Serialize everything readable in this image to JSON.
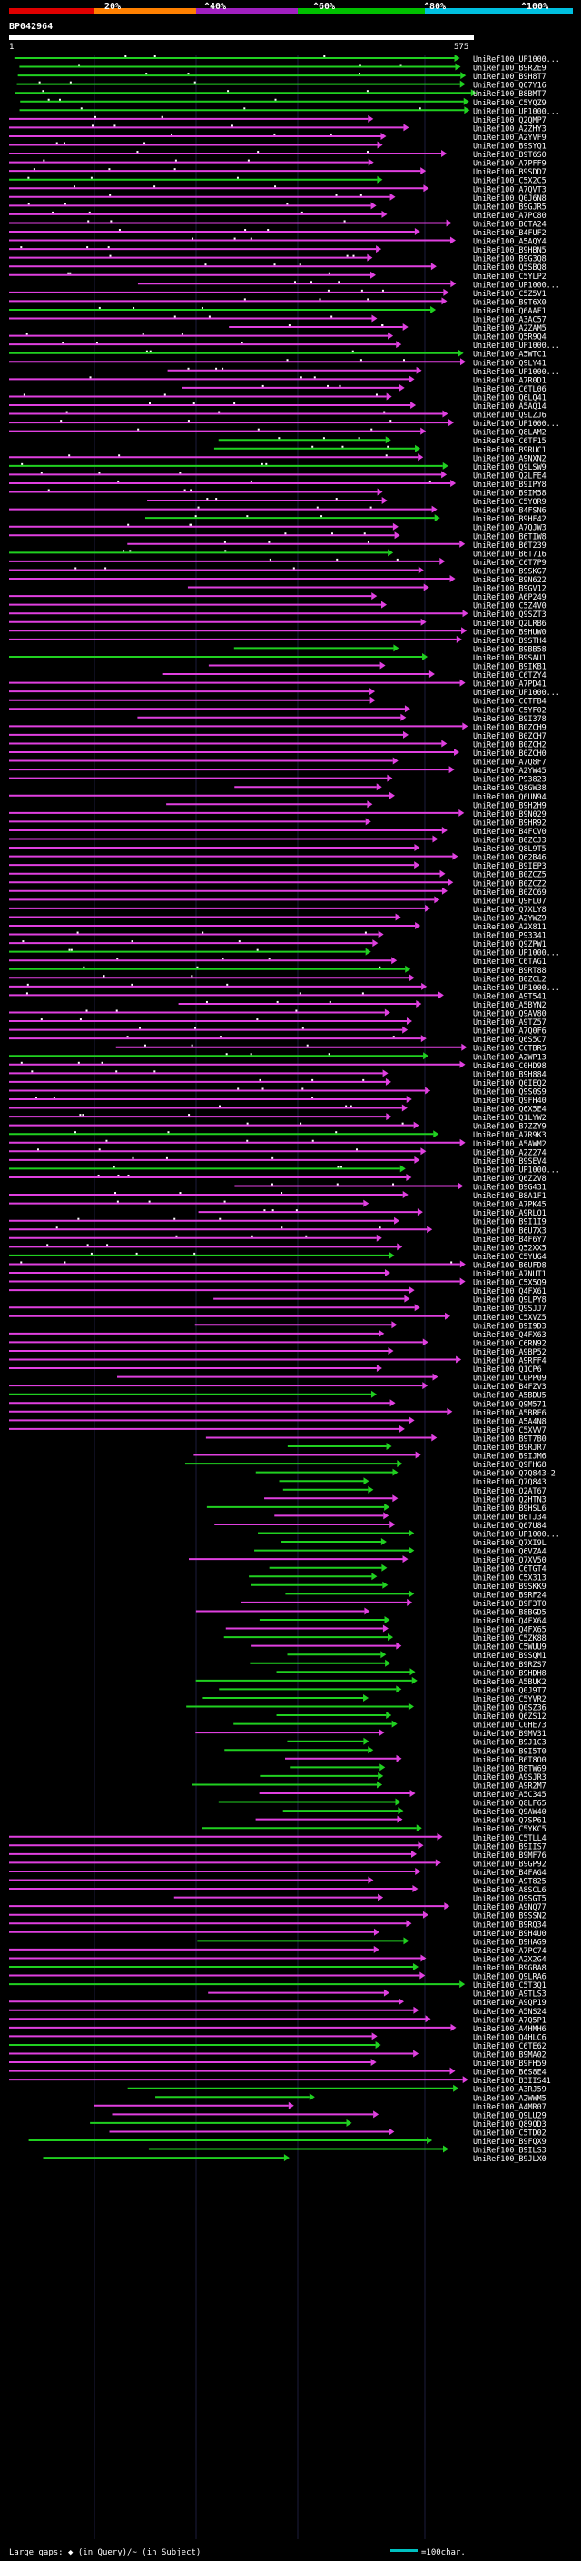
{
  "header": {
    "scale_labels": [
      "20%",
      "^40%",
      "^60%",
      "^80%",
      "^100%"
    ],
    "scale_colors": [
      "#e00000",
      "#ff8000",
      "#a020c0",
      "#00c000",
      "#00c0e0"
    ],
    "query_id": "BP042964",
    "ruler_start": "1",
    "ruler_end": "575"
  },
  "legend": {
    "large_gaps_label": "Large gaps: ◆ (in Query)/~ (in Subject)",
    "scale_label": "=100char."
  },
  "colors": {
    "magenta": "#e040e0",
    "green": "#20d020",
    "orange": "#e07000",
    "yellow": "#e0e040",
    "white": "#ffffff"
  },
  "hits": [
    "UniRef100_UP1000...",
    "UniRef100_B9R2E9",
    "UniRef100_B9H8T7",
    "UniRef100_Q67Y16",
    "UniRef100_B8BMT7",
    "UniRef100_C5YQZ9",
    "UniRef100_UP1000...",
    "UniRef100_Q2QMP7",
    "UniRef100_A2ZHY3",
    "UniRef100_A2YVF9",
    "UniRef100_B9SYQ1",
    "UniRef100_B9T6S0",
    "UniRef100_A7PFF9",
    "UniRef100_B9SDD7",
    "UniRef100_C5X2C5",
    "UniRef100_A7QVT3",
    "UniRef100_Q0J6N8",
    "UniRef100_B9GJR5",
    "UniRef100_A7PC80",
    "UniRef100_B6TA24",
    "UniRef100_B4FUF2",
    "UniRef100_A5AQY4",
    "UniRef100_B9HBN5",
    "UniRef100_B9G3Q8",
    "UniRef100_Q5SBQ8",
    "UniRef100_C5YLP2",
    "UniRef100_UP1000...",
    "UniRef100_C5Z5V1",
    "UniRef100_B9T6X0",
    "UniRef100_Q6AAF1",
    "UniRef100_A3AC57",
    "UniRef100_A2ZAM5",
    "UniRef100_Q5R9Q4",
    "UniRef100_UP1000...",
    "UniRef100_A5WTC1",
    "UniRef100_Q9LY41",
    "UniRef100_UP1000...",
    "UniRef100_A7R0D1",
    "UniRef100_C6TL06",
    "UniRef100_Q6LQ41",
    "UniRef100_A5AQ14",
    "UniRef100_Q9LZJ6",
    "UniRef100_UP1000...",
    "UniRef100_Q8LAM2",
    "UniRef100_C6TF15",
    "UniRef100_B9RUC1",
    "UniRef100_A9NXN2",
    "UniRef100_Q9LSW9",
    "UniRef100_Q2LFE4",
    "UniRef100_B9IPY8",
    "UniRef100_B9IM58",
    "UniRef100_C5YOR9",
    "UniRef100_B4FSN6",
    "UniRef100_B9HF42",
    "UniRef100_A7QJW3",
    "UniRef100_B6TIW8",
    "UniRef100_B6T239",
    "UniRef100_B6T716",
    "UniRef100_C6T7P9",
    "UniRef100_B9SKG7",
    "UniRef100_B9N622",
    "UniRef100_B9GV12",
    "UniRef100_A6P249",
    "UniRef100_C5Z4V0",
    "UniRef100_Q9SZT3",
    "UniRef100_Q2LRB6",
    "UniRef100_B9HUW0",
    "UniRef100_B9STH4",
    "UniRef100_B9BB58",
    "UniRef100_B9SAU1",
    "UniRef100_B9IKB1",
    "UniRef100_C6TZY4",
    "UniRef100_A7PD41",
    "UniRef100_UP1000...",
    "UniRef100_C6TFB4",
    "UniRef100_C5YF02",
    "UniRef100_B9I378",
    "UniRef100_B0ZCH9",
    "UniRef100_B0ZCH7",
    "UniRef100_B0ZCH2",
    "UniRef100_B0ZCH0",
    "UniRef100_A7Q8F7",
    "UniRef100_A2YW45",
    "UniRef100_P93823",
    "UniRef100_Q8GW38",
    "UniRef100_Q6UN94",
    "UniRef100_B9H2H9",
    "UniRef100_B9N029",
    "UniRef100_B9HR92",
    "UniRef100_B4FCV0",
    "UniRef100_B0ZCJ3",
    "UniRef100_Q8L9T5",
    "UniRef100_Q62B46",
    "UniRef100_B9IEP3",
    "UniRef100_B0ZCZ5",
    "UniRef100_B0ZCZ2",
    "UniRef100_B0ZC69",
    "UniRef100_Q9FL07",
    "UniRef100_Q7XLY8",
    "UniRef100_A2YWZ9",
    "UniRef100_A2X811",
    "UniRef100_P93341",
    "UniRef100_Q9ZPW1",
    "UniRef100_UP1000...",
    "UniRef100_C6TAG1",
    "UniRef100_B9RT88",
    "UniRef100_B0ZCL2",
    "UniRef100_UP1000...",
    "UniRef100_A9T541",
    "UniRef100_A5BYN2",
    "UniRef100_Q9AV80",
    "UniRef100_A9TZ57",
    "UniRef100_A7Q0F6",
    "UniRef100_Q6S5C7",
    "UniRef100_C6TBR5",
    "UniRef100_A2WP13",
    "UniRef100_C0HD98",
    "UniRef100_B9H884",
    "UniRef100_Q0IEQ2",
    "UniRef100_Q9S0S9",
    "UniRef100_Q9FH40",
    "UniRef100_Q6X5E4",
    "UniRef100_Q1LYW2",
    "UniRef100_B7ZZY9",
    "UniRef100_A7R9K3",
    "UniRef100_A5AWM2",
    "UniRef100_A2Z274",
    "UniRef100_B9SEV4",
    "UniRef100_UP1000...",
    "UniRef100_Q6Z2V8",
    "UniRef100_B9G431",
    "UniRef100_B8A1F1",
    "UniRef100_A7PK45",
    "UniRef100_A9RLQ1",
    "UniRef100_B9I1I9",
    "UniRef100_B6U7X3",
    "UniRef100_B4F6Y7",
    "UniRef100_Q52XX5",
    "UniRef100_C5YUG4",
    "UniRef100_B6UFD8",
    "UniRef100_A7NUT1",
    "UniRef100_C5X5Q9",
    "UniRef100_Q4FX61",
    "UniRef100_Q9LPY8",
    "UniRef100_Q9SJJ7",
    "UniRef100_C5XVZ5",
    "UniRef100_B9I9D3",
    "UniRef100_Q4FX63",
    "UniRef100_C6RN92",
    "UniRef100_A9BP52",
    "UniRef100_A9RFF4",
    "UniRef100_Q1CP6",
    "UniRef100_C0PP09",
    "UniRef100_B4FZV3",
    "UniRef100_A5BDU5",
    "UniRef100_Q9M571",
    "UniRef100_A5BRE6",
    "UniRef100_A5A4N8",
    "UniRef100_C5XVV7",
    "UniRef100_B9T7B0",
    "UniRef100_B9RJR7",
    "UniRef100_B9IJM6",
    "UniRef100_Q9FHG8",
    "UniRef100_Q7Q843-2",
    "UniRef100_Q7Q843",
    "UniRef100_Q2AT67",
    "UniRef100_Q2HTN3",
    "UniRef100_B9HSL6",
    "UniRef100_B6TJ34",
    "UniRef100_Q67U84",
    "UniRef100_UP1000...",
    "UniRef100_Q7XI9L",
    "UniRef100_Q6VZA4",
    "UniRef100_Q7XV50",
    "UniRef100_C6TGT4",
    "UniRef100_C5X313",
    "UniRef100_B9SKK9",
    "UniRef100_B9RF24",
    "UniRef100_B9F3T0",
    "UniRef100_B8BGD5",
    "UniRef100_Q4FX64",
    "UniRef100_Q4FX65",
    "UniRef100_C5ZK88",
    "UniRef100_C5WUU9",
    "UniRef100_B9SQM1",
    "UniRef100_B9RZS7",
    "UniRef100_B9HDH8",
    "UniRef100_A5BUK2",
    "UniRef100_Q0J9T7",
    "UniRef100_C5YVR2",
    "UniRef100_Q0SZ36",
    "UniRef100_Q6ZS12",
    "UniRef100_C0HE73",
    "UniRef100_B9MV31",
    "UniRef100_B9J1C3",
    "UniRef100_B9I5T0",
    "UniRef100_B6T8O0",
    "UniRef100_B8TW69",
    "UniRef100_A9SJR3",
    "UniRef100_A9R2M7",
    "UniRef100_A5C345",
    "UniRef100_Q8LF65",
    "UniRef100_Q9AW40",
    "UniRef100_Q7SP61",
    "UniRef100_C5YKC5",
    "UniRef100_C5TLL4",
    "UniRef100_B9IIS7",
    "UniRef100_B9MF76",
    "UniRef100_B9GP92",
    "UniRef100_B4FAG4",
    "UniRef100_A9T825",
    "UniRef100_A8SCL6",
    "UniRef100_Q9SGT5",
    "UniRef100_A9NQ77",
    "UniRef100_B9SSN2",
    "UniRef100_B9RQ34",
    "UniRef100_B9H4U0",
    "UniRef100_B9HAG9",
    "UniRef100_A7PC74",
    "UniRef100_A2X2G4",
    "UniRef100_B9GBA8",
    "UniRef100_Q9LRA6",
    "UniRef100_C5T3Q1",
    "UniRef100_A9TLS3",
    "UniRef100_A9QP19",
    "UniRef100_A5NS24",
    "UniRef100_A7Q5P1",
    "UniRef100_A4HMH6",
    "UniRef100_Q4HLC6",
    "UniRef100_C6TE62",
    "UniRef100_B9MA02",
    "UniRef100_B9FH59",
    "UniRef100_B6S8E4",
    "UniRef100_B3IIS41",
    "UniRef100_A3RJ59",
    "UniRef100_A2WWM5",
    "UniRef100_A4MR07",
    "UniRef100_Q9LU29",
    "UniRef100_Q89OD3",
    "UniRef100_C5TD02",
    "UniRef100_B9FQX9",
    "UniRef100_B9ILS3",
    "UniRef100_B9JLX0"
  ]
}
